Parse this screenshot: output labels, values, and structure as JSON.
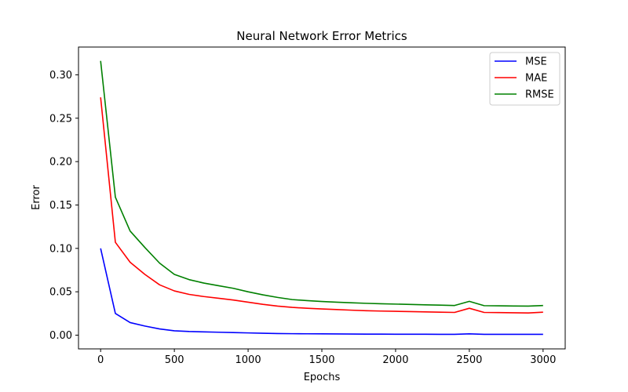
{
  "chart_data": {
    "type": "line",
    "title": "Neural Network Error Metrics",
    "xlabel": "Epochs",
    "ylabel": "Error",
    "xlim": [
      -150,
      3150
    ],
    "ylim": [
      -0.0158,
      0.332
    ],
    "xticks": [
      0,
      500,
      1000,
      1500,
      2000,
      2500,
      3000
    ],
    "xtick_labels": [
      "0",
      "500",
      "1000",
      "1500",
      "2000",
      "2500",
      "3000"
    ],
    "yticks": [
      0.0,
      0.05,
      0.1,
      0.15,
      0.2,
      0.25,
      0.3
    ],
    "ytick_labels": [
      "0.00",
      "0.05",
      "0.10",
      "0.15",
      "0.20",
      "0.25",
      "0.30"
    ],
    "grid": false,
    "legend_position": "top-right",
    "x": [
      0,
      100,
      200,
      300,
      400,
      500,
      600,
      700,
      800,
      900,
      1000,
      1100,
      1200,
      1300,
      1400,
      1500,
      1600,
      1700,
      1800,
      1900,
      2000,
      2100,
      2200,
      2300,
      2400,
      2500,
      2600,
      2700,
      2800,
      2900,
      3000
    ],
    "series": [
      {
        "name": "MSE",
        "color": "#0000ff",
        "values": [
          0.1,
          0.025,
          0.0145,
          0.0105,
          0.0072,
          0.005,
          0.0042,
          0.0038,
          0.0034,
          0.003,
          0.0026,
          0.0022,
          0.0019,
          0.0017,
          0.0016,
          0.0015,
          0.0014,
          0.0013,
          0.0012,
          0.0012,
          0.0011,
          0.0011,
          0.0011,
          0.001,
          0.001,
          0.0015,
          0.001,
          0.001,
          0.001,
          0.001,
          0.001
        ]
      },
      {
        "name": "MAE",
        "color": "#ff0000",
        "values": [
          0.274,
          0.107,
          0.084,
          0.07,
          0.058,
          0.051,
          0.047,
          0.0445,
          0.0425,
          0.0405,
          0.038,
          0.0355,
          0.0335,
          0.032,
          0.031,
          0.0302,
          0.0295,
          0.0288,
          0.0282,
          0.0278,
          0.0275,
          0.0272,
          0.0268,
          0.0265,
          0.0262,
          0.031,
          0.0262,
          0.026,
          0.0258,
          0.0256,
          0.0265
        ]
      },
      {
        "name": "RMSE",
        "color": "#008000",
        "values": [
          0.316,
          0.159,
          0.12,
          0.101,
          0.083,
          0.07,
          0.064,
          0.06,
          0.057,
          0.054,
          0.05,
          0.0465,
          0.0435,
          0.041,
          0.0398,
          0.0388,
          0.038,
          0.0373,
          0.0367,
          0.0362,
          0.0358,
          0.0354,
          0.035,
          0.0346,
          0.0342,
          0.039,
          0.034,
          0.0338,
          0.0336,
          0.0335,
          0.0342
        ]
      }
    ]
  }
}
